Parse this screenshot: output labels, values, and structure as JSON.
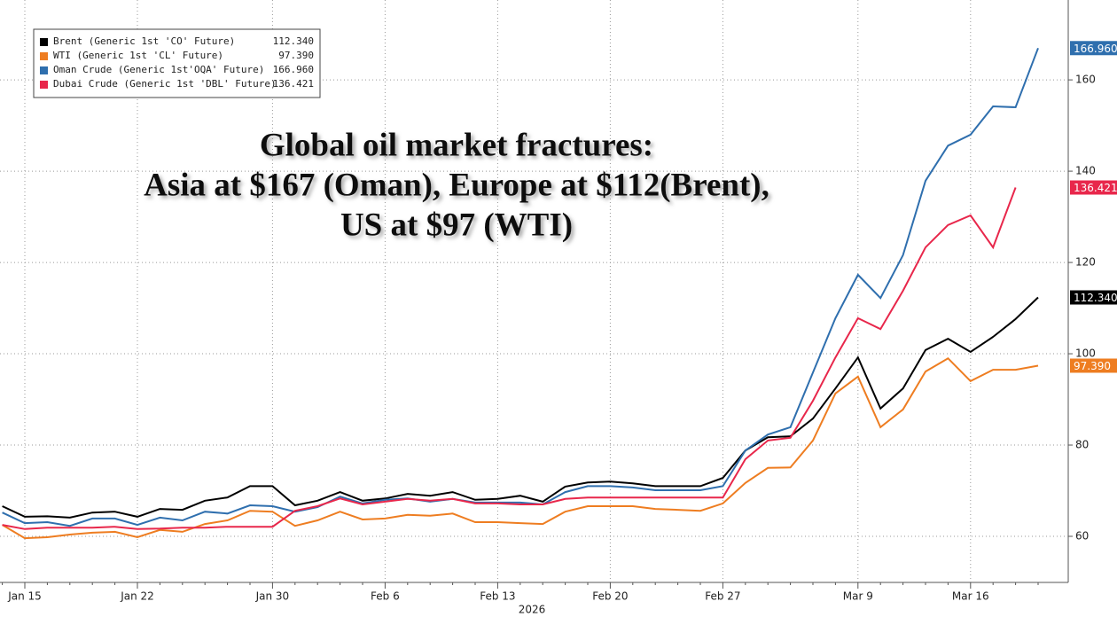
{
  "chart_data": {
    "type": "line",
    "title": [
      "Global oil market fractures:",
      "Asia at $167 (Oman), Europe at $112(Brent),",
      "US at $97 (WTI)"
    ],
    "x_label": "2026",
    "categories": [
      null,
      "Jan 15",
      null,
      null,
      null,
      null,
      "Jan 22",
      null,
      null,
      null,
      null,
      null,
      "Jan 30",
      null,
      null,
      null,
      null,
      "Feb 6",
      null,
      null,
      null,
      null,
      "Feb 13",
      null,
      null,
      null,
      null,
      "Feb 20",
      null,
      null,
      null,
      null,
      "Feb 27",
      null,
      null,
      null,
      null,
      null,
      "Mar 9",
      null,
      null,
      null,
      null,
      "Mar 16",
      null,
      null,
      null
    ],
    "ylim": [
      50,
      177.5
    ],
    "yticks": [
      60,
      80,
      100,
      120,
      140,
      160
    ],
    "grid": true,
    "legend": "upper left",
    "series": [
      {
        "name": "Brent (Generic 1st 'CO' Future)",
        "color": "#000000",
        "values": [
          66.6,
          64.3,
          64.4,
          64.1,
          65.2,
          65.4,
          64.3,
          66.0,
          65.8,
          67.8,
          68.5,
          71.0,
          71.0,
          66.8,
          67.8,
          69.7,
          67.8,
          68.3,
          69.3,
          68.9,
          69.7,
          68.0,
          68.2,
          68.9,
          67.6,
          70.9,
          71.8,
          72.0,
          71.6,
          71.0,
          71.0,
          71.0,
          72.8,
          78.8,
          81.7,
          81.9,
          85.8,
          92.4,
          99.2,
          88.0,
          92.4,
          100.8,
          103.3,
          100.4,
          103.7,
          107.6,
          112.34
        ],
        "value_labels": [
          null,
          null,
          null,
          null,
          null,
          null,
          null,
          null,
          null,
          null,
          null,
          null,
          null,
          null,
          null,
          null,
          null,
          null,
          null,
          null,
          null,
          null,
          null,
          null,
          null,
          null,
          null,
          null,
          null,
          null,
          null,
          null,
          null,
          null,
          null,
          null,
          null,
          null,
          null,
          null,
          null,
          null,
          null,
          null,
          null,
          null,
          "112.340"
        ]
      },
      {
        "name": "WTI (Generic 1st 'CL' Future)",
        "color": "#ee7d21",
        "values": [
          62.5,
          59.6,
          59.8,
          60.4,
          60.8,
          61.0,
          59.8,
          61.4,
          61.0,
          62.7,
          63.5,
          65.6,
          65.4,
          62.3,
          63.5,
          65.4,
          63.7,
          63.9,
          64.7,
          64.5,
          65.0,
          63.1,
          63.1,
          62.9,
          62.7,
          65.4,
          66.6,
          66.6,
          66.6,
          66.0,
          65.8,
          65.6,
          67.2,
          71.7,
          75.0,
          75.1,
          81.0,
          91.3,
          95.0,
          83.9,
          87.8,
          96.1,
          99.0,
          94.0,
          96.5,
          96.5,
          97.39
        ],
        "value_labels": [
          null,
          null,
          null,
          null,
          null,
          null,
          null,
          null,
          null,
          null,
          null,
          null,
          null,
          null,
          null,
          null,
          null,
          null,
          null,
          null,
          null,
          null,
          null,
          null,
          null,
          null,
          null,
          null,
          null,
          null,
          null,
          null,
          null,
          null,
          null,
          null,
          null,
          null,
          null,
          null,
          null,
          null,
          null,
          null,
          null,
          null,
          "97.390"
        ]
      },
      {
        "name": "Oman Crude (Generic 1st'OQA' Future)",
        "color": "#2f6fae",
        "values": [
          65.2,
          62.9,
          63.1,
          62.3,
          63.9,
          63.9,
          62.5,
          64.1,
          63.5,
          65.4,
          65.0,
          66.8,
          66.6,
          65.4,
          66.4,
          68.7,
          67.2,
          68.0,
          68.3,
          67.6,
          68.2,
          67.4,
          67.4,
          67.4,
          67.0,
          69.7,
          71.0,
          71.0,
          70.7,
          70.1,
          70.1,
          70.1,
          71.0,
          78.8,
          82.3,
          83.9,
          95.9,
          107.8,
          117.3,
          112.2,
          121.6,
          137.9,
          145.6,
          148.0,
          154.2,
          154.0,
          166.96
        ],
        "value_labels": [
          null,
          null,
          null,
          null,
          null,
          null,
          null,
          null,
          null,
          null,
          null,
          null,
          null,
          null,
          null,
          null,
          null,
          null,
          null,
          null,
          null,
          null,
          null,
          null,
          null,
          null,
          null,
          null,
          null,
          null,
          null,
          null,
          null,
          null,
          null,
          null,
          null,
          null,
          null,
          null,
          null,
          null,
          null,
          null,
          null,
          null,
          "166.960"
        ]
      },
      {
        "name": "Dubai Crude (Generic 1st 'DBL' Future)",
        "color": "#e8274b",
        "values": [
          62.5,
          61.6,
          61.9,
          61.9,
          61.9,
          62.1,
          61.6,
          61.7,
          61.9,
          61.9,
          62.1,
          62.1,
          62.1,
          65.6,
          66.6,
          68.3,
          67.0,
          67.6,
          68.2,
          67.8,
          68.2,
          67.2,
          67.2,
          67.0,
          67.0,
          68.2,
          68.5,
          68.5,
          68.5,
          68.5,
          68.5,
          68.5,
          68.5,
          76.9,
          81.0,
          81.6,
          89.7,
          99.2,
          107.8,
          105.4,
          113.8,
          123.3,
          128.2,
          130.3,
          123.3,
          136.421,
          null
        ],
        "value_labels": [
          null,
          null,
          null,
          null,
          null,
          null,
          null,
          null,
          null,
          null,
          null,
          null,
          null,
          null,
          null,
          null,
          null,
          null,
          null,
          null,
          null,
          null,
          null,
          null,
          null,
          null,
          null,
          null,
          null,
          null,
          null,
          null,
          null,
          null,
          null,
          null,
          null,
          null,
          null,
          null,
          null,
          null,
          null,
          null,
          null,
          "136.421",
          null
        ]
      }
    ]
  }
}
